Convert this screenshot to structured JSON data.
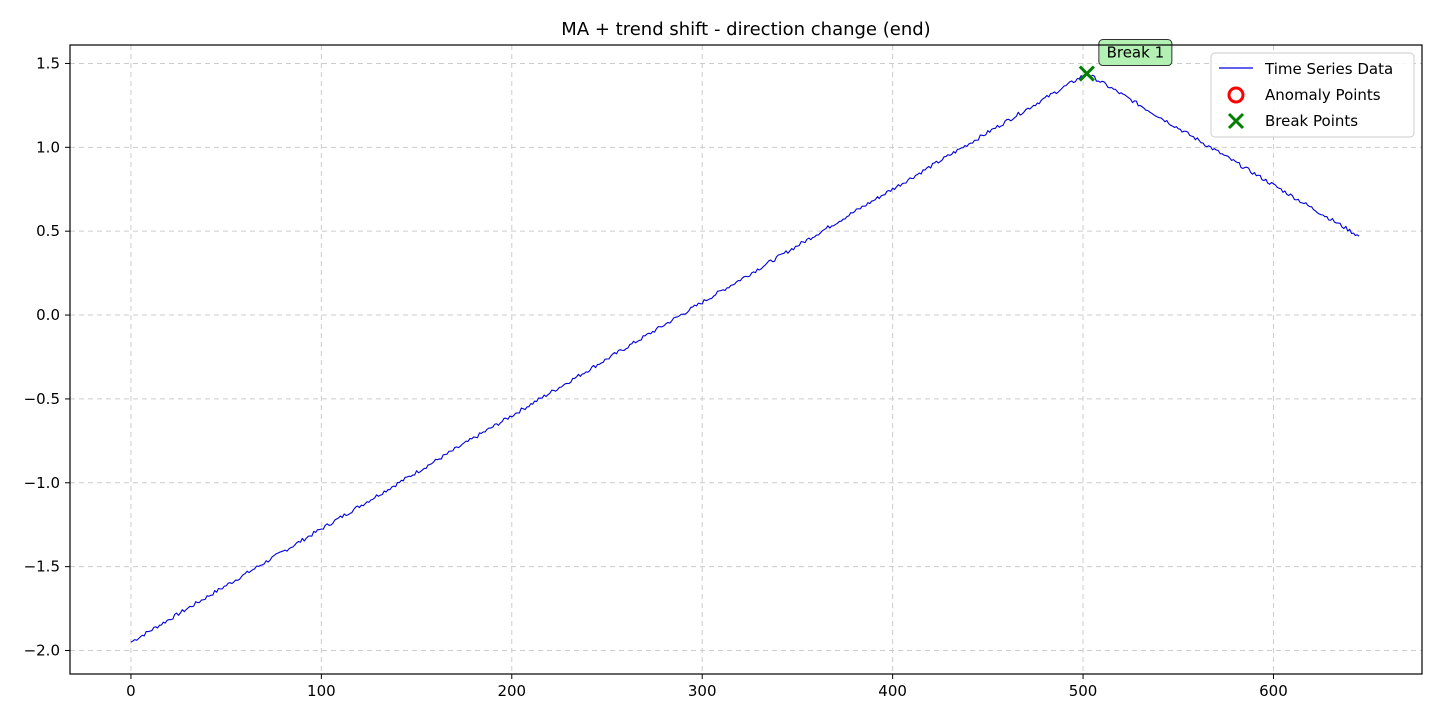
{
  "chart_data": {
    "type": "line",
    "title": "MA + trend shift - direction change (end)",
    "xlabel": "",
    "ylabel": "",
    "xlim": [
      -32,
      678
    ],
    "ylim": [
      -2.14,
      1.61
    ],
    "x_ticks": [
      0,
      100,
      200,
      300,
      400,
      500,
      600
    ],
    "y_ticks": [
      -2.0,
      -1.5,
      -1.0,
      -0.5,
      0.0,
      0.5,
      1.0,
      1.5
    ],
    "y_tick_labels": [
      "−2.0",
      "−1.5",
      "−1.0",
      "−0.5",
      "0.0",
      "0.5",
      "1.0",
      "1.5"
    ],
    "grid": true,
    "legend_position": "top-right",
    "series": [
      {
        "name": "Time Series Data",
        "color": "#0000dd",
        "segments": [
          {
            "x_start": 0,
            "x_end": 502,
            "y_start": -1.95,
            "y_end": 1.44
          },
          {
            "x_start": 502,
            "x_end": 645,
            "y_start": 1.44,
            "y_end": 0.47
          }
        ],
        "noise_amplitude": 0.012
      }
    ],
    "anomaly_points": {
      "name": "Anomaly Points",
      "color": "#ff0000",
      "points": []
    },
    "break_points": {
      "name": "Break Points",
      "color": "#008000",
      "points": [
        {
          "x": 502,
          "y": 1.44
        }
      ]
    },
    "annotations": [
      {
        "text": "Break 1",
        "x": 502,
        "y": 1.44,
        "bg_color": "#b3f0b3"
      }
    ]
  }
}
